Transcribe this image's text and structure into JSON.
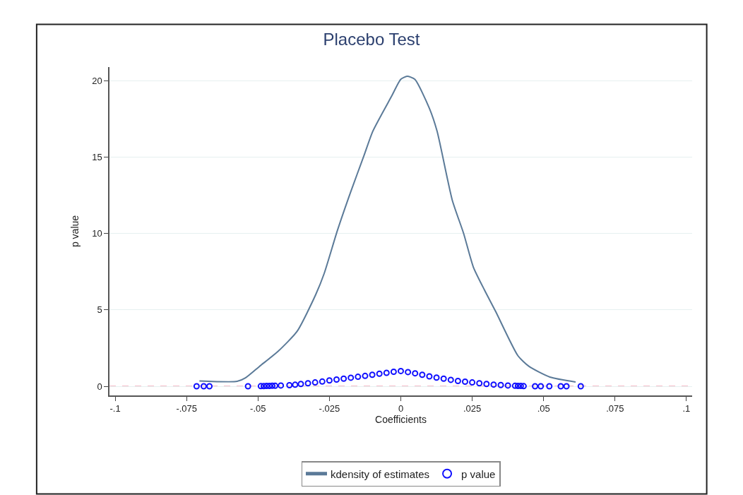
{
  "chart_data": {
    "type": "line",
    "title": "Placebo Test",
    "xlabel": "Coefficients",
    "ylabel": "p value",
    "xlim": [
      -0.102,
      0.102
    ],
    "ylim": [
      -0.6,
      20.9
    ],
    "xticks": [
      {
        "value": -0.1,
        "label": "-.1"
      },
      {
        "value": -0.075,
        "label": "-.075"
      },
      {
        "value": -0.05,
        "label": "-.05"
      },
      {
        "value": -0.025,
        "label": "-.025"
      },
      0,
      {
        "value": 0.025,
        "label": ".025"
      },
      {
        "value": 0.05,
        "label": ".05"
      },
      {
        "value": 0.075,
        "label": ".075"
      },
      {
        "value": 0.1,
        "label": ".1"
      }
    ],
    "yticks": [
      0,
      5,
      10,
      15,
      20
    ],
    "grid": "y",
    "legend": "bottom",
    "ref_lines": [
      {
        "axis": "y",
        "value": 0,
        "color": "#f4a6b8",
        "line_style": "dashed"
      }
    ],
    "series": [
      {
        "name": "kdensity of estimates",
        "color": "#5b7a98",
        "marker": "none",
        "line_style": "solid",
        "x": [
          -0.0705,
          -0.0573,
          -0.0544,
          -0.0495,
          -0.0429,
          -0.0363,
          -0.0298,
          -0.0268,
          -0.0222,
          -0.0176,
          -0.0129,
          -0.0098,
          -0.0032,
          0.0,
          0.0022,
          0.0049,
          0.01,
          0.0127,
          0.018,
          0.022,
          0.0254,
          0.0293,
          0.0332,
          0.041,
          0.0449,
          0.0522,
          0.0612
        ],
        "values": [
          0.35,
          0.32,
          0.55,
          1.3,
          2.3,
          3.6,
          6.0,
          7.4,
          10.2,
          12.7,
          15.1,
          16.7,
          19.0,
          20.1,
          20.3,
          20.1,
          18.2,
          16.7,
          12.2,
          10.0,
          7.8,
          6.3,
          4.9,
          2.0,
          1.3,
          0.6,
          0.28
        ]
      },
      {
        "name": "p value",
        "type": "scatter",
        "color": "#1010ff",
        "marker": "circle",
        "x": [
          -0.0715,
          -0.069,
          -0.067,
          -0.0535,
          -0.049,
          -0.048,
          -0.047,
          -0.046,
          -0.045,
          -0.044,
          -0.042,
          -0.039,
          -0.037,
          -0.035,
          -0.0325,
          -0.03,
          -0.0275,
          -0.025,
          -0.0225,
          -0.02,
          -0.0175,
          -0.015,
          -0.0125,
          -0.01,
          -0.0075,
          -0.005,
          -0.0025,
          0.0,
          0.0025,
          0.005,
          0.0075,
          0.01,
          0.0125,
          0.015,
          0.0175,
          0.02,
          0.0225,
          0.025,
          0.0275,
          0.03,
          0.0325,
          0.035,
          0.0375,
          0.04,
          0.041,
          0.042,
          0.043,
          0.047,
          0.049,
          0.052,
          0.056,
          0.058,
          0.063
        ],
        "values": [
          0.0,
          0.0,
          0.0,
          0.0,
          0.01,
          0.01,
          0.02,
          0.02,
          0.03,
          0.03,
          0.05,
          0.07,
          0.1,
          0.15,
          0.2,
          0.25,
          0.31,
          0.38,
          0.44,
          0.5,
          0.56,
          0.62,
          0.68,
          0.75,
          0.82,
          0.88,
          0.95,
          1.0,
          0.93,
          0.85,
          0.75,
          0.65,
          0.57,
          0.5,
          0.42,
          0.35,
          0.3,
          0.25,
          0.2,
          0.15,
          0.11,
          0.08,
          0.05,
          0.03,
          0.02,
          0.02,
          0.01,
          0.0,
          0.0,
          0.0,
          0.0,
          0.0,
          0.0
        ]
      }
    ]
  }
}
